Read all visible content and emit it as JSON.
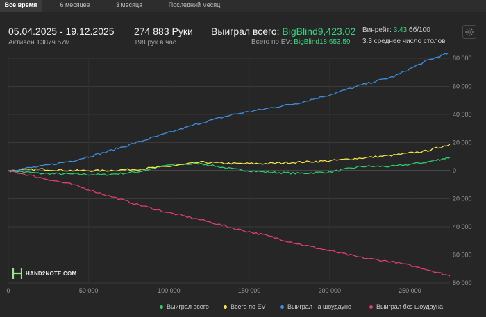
{
  "tabs": [
    {
      "label": "Все время",
      "active": true
    },
    {
      "label": "6 месяцев",
      "active": false
    },
    {
      "label": "3 месяца",
      "active": false
    },
    {
      "label": "Последний месяц",
      "active": false
    }
  ],
  "header": {
    "date_range": "05.04.2025 - 19.12.2025",
    "active_time": "Активен 1387ч 57м",
    "hands": "274 883 Руки",
    "hands_per_hour": "198 рук в час",
    "won_total_label": "Выиграл всего:",
    "won_total_value": "BigBlind9,423.02",
    "ev_label": "Всего по EV:",
    "ev_value": "BigBlind18,653.59",
    "winrate_label": "Винрейт:",
    "winrate_value": "3.43",
    "winrate_unit": "бб/100",
    "tables": "3.3 среднее число столов"
  },
  "icons": {
    "settings": "gear-icon",
    "logo": "hand2note-logo-icon"
  },
  "logo_text": "HAND2NOTE.COM",
  "chart_data": {
    "type": "line",
    "x_ticks": [
      "0",
      "50 000",
      "100 000",
      "150 000",
      "200 000",
      "250 000"
    ],
    "y_ticks": [
      "80 000",
      "60 000",
      "40 000",
      "20 000",
      "0",
      "20 000",
      "40 000",
      "60 000",
      "80 000"
    ],
    "xlim": [
      0,
      274883
    ],
    "ylim": [
      -80000,
      80000
    ],
    "x": [
      0,
      20000,
      40000,
      60000,
      80000,
      100000,
      120000,
      140000,
      160000,
      180000,
      200000,
      220000,
      240000,
      260000,
      274883
    ],
    "series": [
      {
        "name": "Выиграл всего",
        "color": "#2ecc71",
        "values": [
          0,
          -2000,
          -2500,
          -3000,
          -1000,
          4000,
          5000,
          1000,
          -1000,
          -2000,
          -1000,
          3000,
          3000,
          6000,
          9423
        ]
      },
      {
        "name": "Всего по EV",
        "color": "#f1e84b",
        "values": [
          0,
          1000,
          0,
          0,
          1000,
          3000,
          6000,
          5000,
          5000,
          6000,
          7000,
          9000,
          11000,
          14000,
          18654
        ]
      },
      {
        "name": "Выиграл на шоудауне",
        "color": "#3d8fe0",
        "values": [
          0,
          3000,
          7000,
          13000,
          20000,
          27000,
          34000,
          40000,
          44000,
          48000,
          54000,
          61000,
          67000,
          78000,
          84000
        ]
      },
      {
        "name": "Выиграл без шоудауна",
        "color": "#e0406a",
        "values": [
          0,
          -5000,
          -10000,
          -17000,
          -24000,
          -30000,
          -35000,
          -41000,
          -46000,
          -52000,
          -57000,
          -62000,
          -65000,
          -70000,
          -75000
        ]
      }
    ],
    "grid": true,
    "legend": "bottom-right"
  }
}
